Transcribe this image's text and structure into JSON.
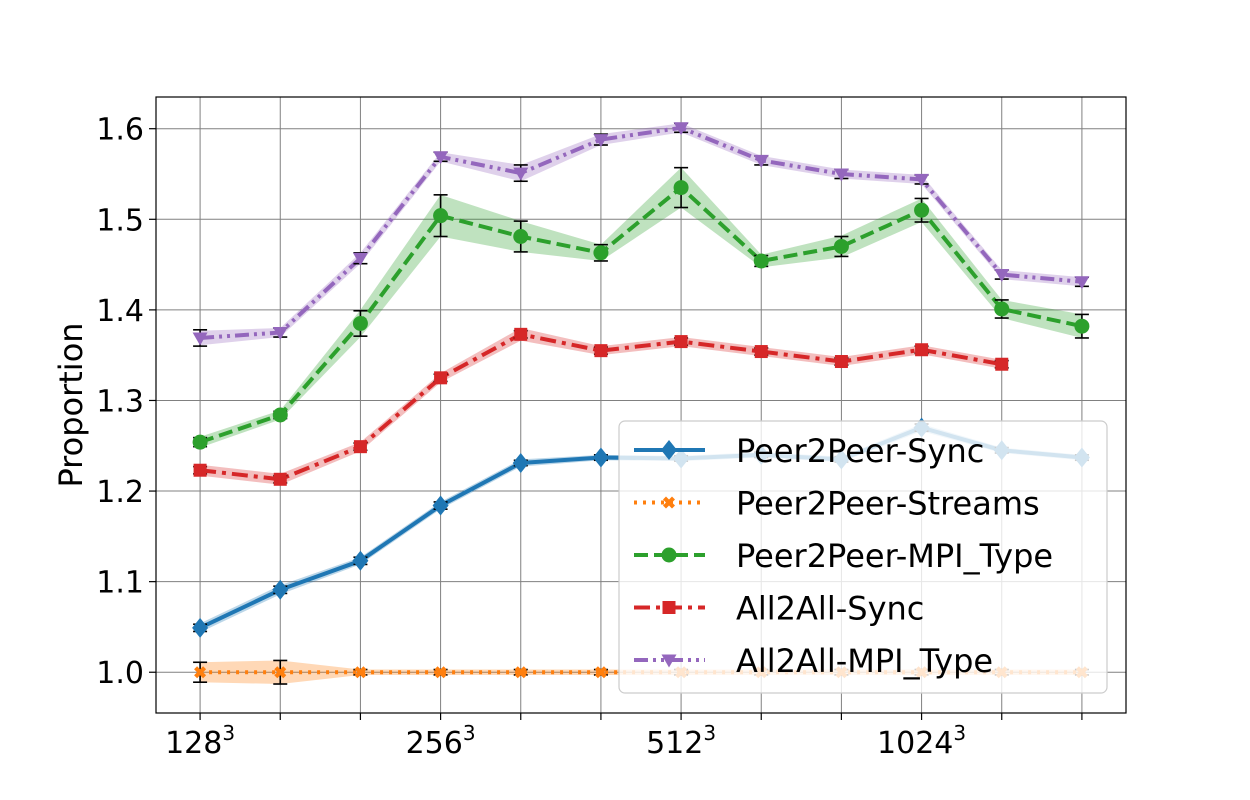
{
  "chart_data": {
    "type": "line",
    "ylabel": "Proportion",
    "ylim": [
      0.955,
      1.635
    ],
    "yticks": [
      1.0,
      1.1,
      1.2,
      1.3,
      1.4,
      1.5,
      1.6
    ],
    "ytick_labels": [
      "1.0",
      "1.1",
      "1.2",
      "1.3",
      "1.4",
      "1.5",
      "1.6"
    ],
    "x": [
      0,
      1,
      2,
      3,
      4,
      5,
      6,
      7,
      8,
      9,
      10,
      11
    ],
    "xlim": [
      -0.55,
      11.55
    ],
    "xticks_labeled": [
      {
        "x": 0,
        "base": "128",
        "exp": "3"
      },
      {
        "x": 3,
        "base": "256",
        "exp": "3"
      },
      {
        "x": 6,
        "base": "512",
        "exp": "3"
      },
      {
        "x": 9,
        "base": "1024",
        "exp": "3"
      }
    ],
    "grid": true,
    "legend_position": "lower-right",
    "series": [
      {
        "name": "Peer2Peer-Sync",
        "color": "#1f77b4",
        "marker": "diamond",
        "dash": "solid",
        "values": [
          1.049,
          1.091,
          1.123,
          1.184,
          1.231,
          1.237,
          1.236,
          1.24,
          1.235,
          1.27,
          1.245,
          1.237
        ],
        "band": [
          0.005,
          0.005,
          0.004,
          0.004,
          0.004,
          0.003,
          0.003,
          0.003,
          0.003,
          0.004,
          0.003,
          0.003
        ],
        "err": [
          0.004,
          0.004,
          0.004,
          0.004,
          0.003,
          0.003,
          0.003,
          0.003,
          0.003,
          0.004,
          0.003,
          0.003
        ]
      },
      {
        "name": "Peer2Peer-Streams",
        "color": "#ff7f0e",
        "marker": "x",
        "dash": "dotted",
        "values": [
          1.0,
          1.0,
          1.0,
          1.0,
          1.0,
          1.0,
          1.0,
          1.0,
          1.0,
          1.0,
          1.0,
          1.0
        ],
        "band": [
          0.011,
          0.013,
          0.003,
          0.003,
          0.003,
          0.003,
          0.003,
          0.003,
          0.003,
          0.003,
          0.003,
          0.003
        ],
        "err": [
          0.011,
          0.013,
          0.003,
          0.003,
          0.003,
          0.003,
          0.003,
          0.003,
          0.003,
          0.003,
          0.003,
          0.003
        ]
      },
      {
        "name": "Peer2Peer-MPI_Type",
        "color": "#2ca02c",
        "marker": "circle",
        "dash": "dashed",
        "values": [
          1.254,
          1.284,
          1.385,
          1.504,
          1.481,
          1.463,
          1.535,
          1.454,
          1.47,
          1.51,
          1.401,
          1.382
        ],
        "band": [
          0.006,
          0.005,
          0.015,
          0.023,
          0.017,
          0.009,
          0.022,
          0.007,
          0.012,
          0.013,
          0.01,
          0.013
        ],
        "err": [
          0.005,
          0.004,
          0.014,
          0.023,
          0.017,
          0.009,
          0.022,
          0.006,
          0.011,
          0.013,
          0.01,
          0.013
        ]
      },
      {
        "name": "All2All-Sync",
        "color": "#d62728",
        "marker": "square",
        "dash": "dashdot",
        "values": [
          1.223,
          1.213,
          1.249,
          1.325,
          1.373,
          1.355,
          1.365,
          1.354,
          1.343,
          1.356,
          1.34,
          null
        ],
        "band": [
          0.006,
          0.006,
          0.005,
          0.005,
          0.007,
          0.005,
          0.005,
          0.005,
          0.005,
          0.005,
          0.005,
          null
        ],
        "err": [
          0.004,
          0.004,
          0.004,
          0.004,
          0.004,
          0.004,
          0.004,
          0.004,
          0.004,
          0.004,
          0.004,
          null
        ]
      },
      {
        "name": "All2All-MPI_Type",
        "color": "#9467bd",
        "marker": "triangle-down",
        "dash": "dashdotdot",
        "values": [
          1.369,
          1.375,
          1.457,
          1.569,
          1.551,
          1.588,
          1.601,
          1.565,
          1.55,
          1.544,
          1.439,
          1.431
        ],
        "band": [
          0.008,
          0.005,
          0.006,
          0.005,
          0.009,
          0.006,
          0.005,
          0.005,
          0.005,
          0.005,
          0.005,
          0.005
        ],
        "err": [
          0.009,
          0.005,
          0.006,
          0.005,
          0.009,
          0.006,
          0.005,
          0.005,
          0.005,
          0.005,
          0.005,
          0.005
        ]
      }
    ]
  }
}
